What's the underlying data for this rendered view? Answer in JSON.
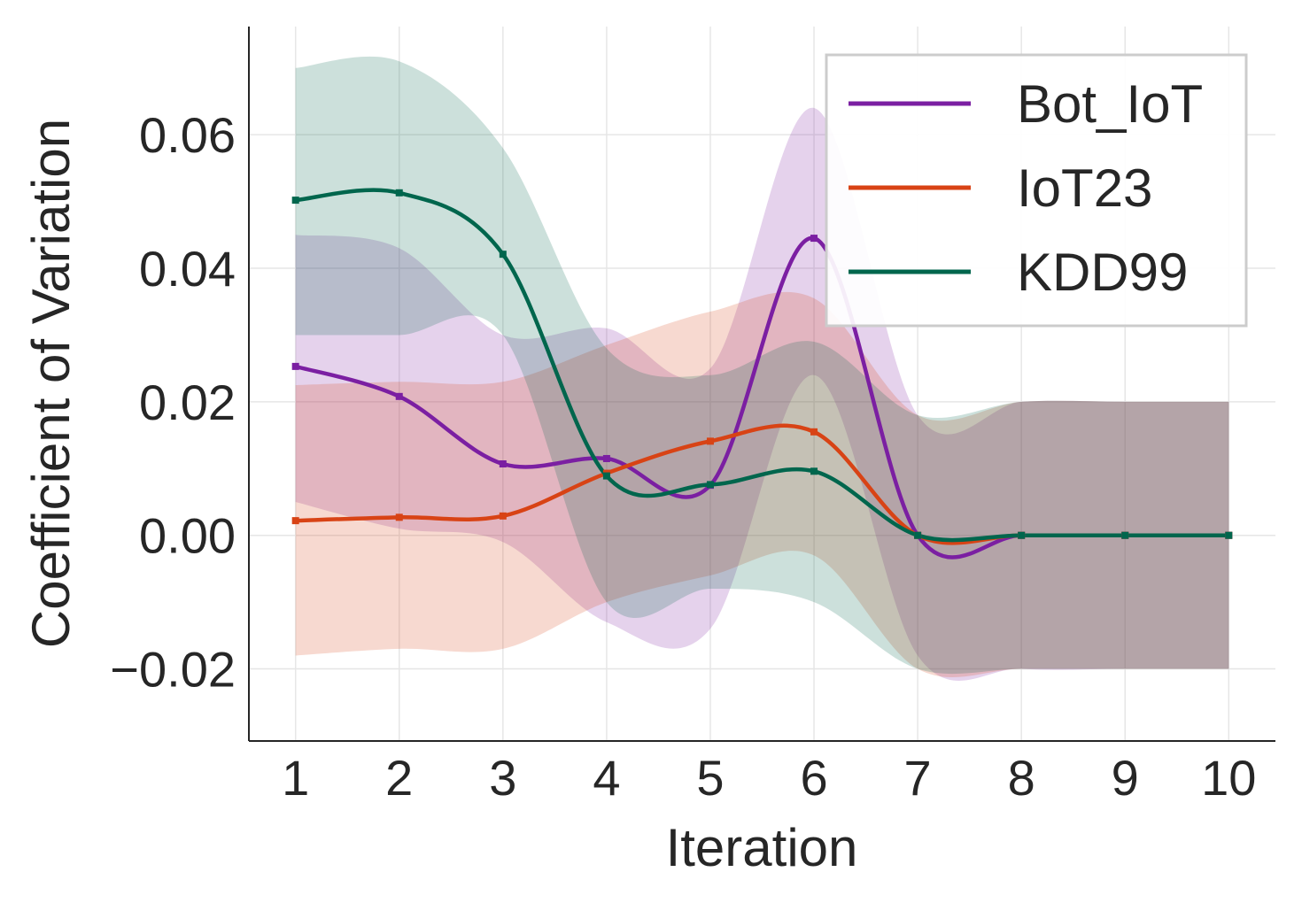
{
  "chart_data": {
    "type": "line",
    "title": "",
    "xlabel": "Iteration",
    "ylabel": "Coefficient of Variation",
    "x": [
      1,
      2,
      3,
      4,
      5,
      6,
      7,
      8,
      9,
      10
    ],
    "xticks": [
      "1",
      "2",
      "3",
      "4",
      "5",
      "6",
      "7",
      "8",
      "9",
      "10"
    ],
    "yticks": [
      {
        "value": -0.02,
        "label": "−0.02"
      },
      {
        "value": 0.0,
        "label": "0.00"
      },
      {
        "value": 0.02,
        "label": "0.02"
      },
      {
        "value": 0.04,
        "label": "0.04"
      },
      {
        "value": 0.06,
        "label": "0.06"
      }
    ],
    "xlim": [
      0.55,
      10.45
    ],
    "ylim": [
      -0.0308,
      0.0762
    ],
    "grid": true,
    "legend_position": "top-right",
    "series": [
      {
        "name": "Bot_IoT",
        "color": "#7b1fa2",
        "values": [
          0.0253,
          0.0208,
          0.0107,
          0.0115,
          0.0075,
          0.0445,
          0.0,
          0.0,
          0.0,
          0.0
        ],
        "lower": [
          0.005,
          0.001,
          -0.001,
          -0.013,
          -0.014,
          0.024,
          -0.018,
          -0.02,
          -0.02,
          -0.02
        ],
        "upper": [
          0.045,
          0.043,
          0.03,
          0.031,
          0.025,
          0.064,
          0.018,
          0.02,
          0.02,
          0.02
        ]
      },
      {
        "name": "IoT23",
        "color": "#d84315",
        "values": [
          0.0022,
          0.0027,
          0.0029,
          0.0093,
          0.0141,
          0.0155,
          0.0,
          0.0,
          0.0,
          0.0
        ],
        "lower": [
          -0.018,
          -0.017,
          -0.017,
          -0.01,
          -0.006,
          -0.003,
          -0.02,
          -0.02,
          -0.02,
          -0.02
        ],
        "upper": [
          0.0225,
          0.023,
          0.023,
          0.0285,
          0.0335,
          0.0355,
          0.018,
          0.02,
          0.02,
          0.02
        ]
      },
      {
        "name": "KDD99",
        "color": "#00664d",
        "values": [
          0.0502,
          0.0513,
          0.0421,
          0.0089,
          0.0076,
          0.0096,
          0.0,
          0.0,
          0.0,
          0.0
        ],
        "lower": [
          0.03,
          0.03,
          0.03,
          -0.01,
          -0.008,
          -0.01,
          -0.02,
          -0.02,
          -0.02,
          -0.02
        ],
        "upper": [
          0.07,
          0.071,
          0.058,
          0.028,
          0.024,
          0.029,
          0.018,
          0.02,
          0.02,
          0.02
        ]
      }
    ]
  }
}
